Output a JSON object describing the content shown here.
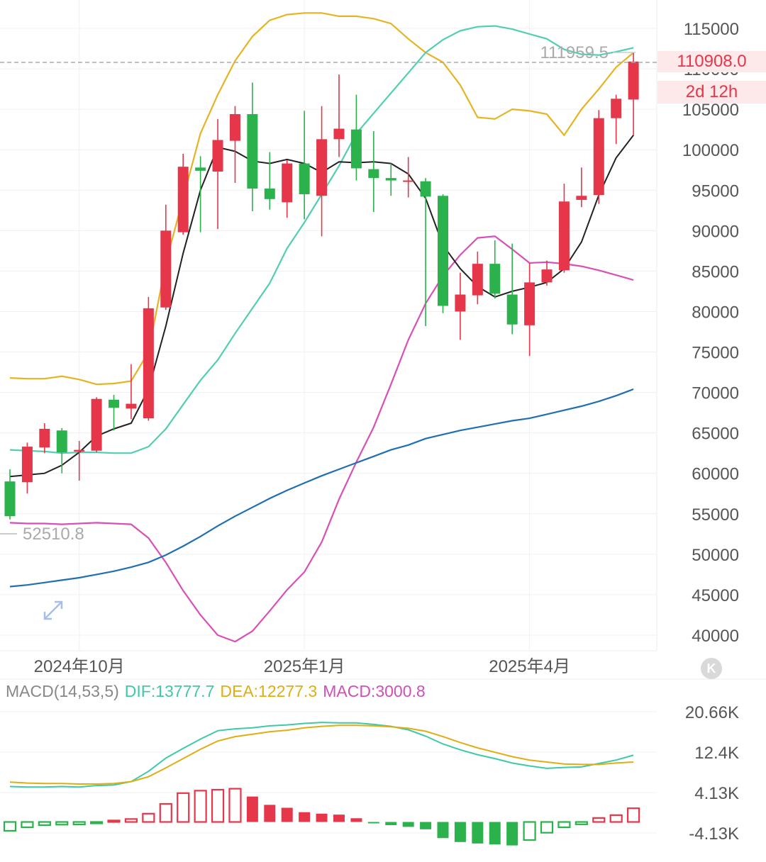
{
  "chart_data": [
    {
      "type": "candlestick",
      "title": "",
      "y_axis_ticks": [
        40000,
        45000,
        50000,
        55000,
        60000,
        65000,
        70000,
        75000,
        80000,
        85000,
        90000,
        95000,
        100000,
        105000,
        110000,
        115000
      ],
      "x_axis_ticks": [
        "2024年10月",
        "2025年1月",
        "2025年4月"
      ],
      "ylim": [
        38000,
        118000
      ],
      "annotations": {
        "high_label": "111959.5",
        "low_label": "52510.8",
        "last_price": "110908.0",
        "countdown": "2d 12h"
      },
      "candles": [
        {
          "o": 59000,
          "c": 54700,
          "h": 60500,
          "l": 54300
        },
        {
          "o": 58900,
          "c": 63300,
          "h": 63800,
          "l": 57500
        },
        {
          "o": 63200,
          "c": 65500,
          "h": 66200,
          "l": 62500
        },
        {
          "o": 65300,
          "c": 62600,
          "h": 65600,
          "l": 60000
        },
        {
          "o": 62700,
          "c": 62900,
          "h": 64000,
          "l": 59100
        },
        {
          "o": 62800,
          "c": 69200,
          "h": 69400,
          "l": 62600
        },
        {
          "o": 69100,
          "c": 68100,
          "h": 69700,
          "l": 65300
        },
        {
          "o": 68000,
          "c": 68600,
          "h": 73500,
          "l": 66700
        },
        {
          "o": 66800,
          "c": 80400,
          "h": 81800,
          "l": 66500
        },
        {
          "o": 80500,
          "c": 90000,
          "h": 93200,
          "l": 80200
        },
        {
          "o": 89800,
          "c": 97900,
          "h": 99500,
          "l": 89500
        },
        {
          "o": 97800,
          "c": 97400,
          "h": 99200,
          "l": 89800
        },
        {
          "o": 97300,
          "c": 101200,
          "h": 103800,
          "l": 90200
        },
        {
          "o": 101100,
          "c": 104400,
          "h": 105400,
          "l": 95900
        },
        {
          "o": 104400,
          "c": 95200,
          "h": 108300,
          "l": 92400
        },
        {
          "o": 95200,
          "c": 93900,
          "h": 99700,
          "l": 92600
        },
        {
          "o": 93500,
          "c": 98300,
          "h": 98700,
          "l": 91600
        },
        {
          "o": 98300,
          "c": 94500,
          "h": 104800,
          "l": 91400
        },
        {
          "o": 94300,
          "c": 101300,
          "h": 105400,
          "l": 89300
        },
        {
          "o": 101300,
          "c": 102600,
          "h": 109300,
          "l": 99100
        },
        {
          "o": 102500,
          "c": 97700,
          "h": 106800,
          "l": 96200
        },
        {
          "o": 97600,
          "c": 96500,
          "h": 102300,
          "l": 92300
        },
        {
          "o": 96500,
          "c": 96200,
          "h": 98300,
          "l": 94300
        },
        {
          "o": 96200,
          "c": 96200,
          "h": 99100,
          "l": 94100
        },
        {
          "o": 96100,
          "c": 94200,
          "h": 96500,
          "l": 78200
        },
        {
          "o": 94300,
          "c": 80700,
          "h": 94500,
          "l": 79800
        },
        {
          "o": 80000,
          "c": 82100,
          "h": 84800,
          "l": 76500
        },
        {
          "o": 82000,
          "c": 85900,
          "h": 87400,
          "l": 80900
        },
        {
          "o": 85900,
          "c": 82200,
          "h": 88800,
          "l": 81600
        },
        {
          "o": 82100,
          "c": 78400,
          "h": 88400,
          "l": 77200
        },
        {
          "o": 78300,
          "c": 83600,
          "h": 86000,
          "l": 74500
        },
        {
          "o": 83600,
          "c": 85200,
          "h": 86300,
          "l": 83200
        },
        {
          "o": 85100,
          "c": 93600,
          "h": 95800,
          "l": 84800
        },
        {
          "o": 93800,
          "c": 94300,
          "h": 97800,
          "l": 92900
        },
        {
          "o": 94400,
          "c": 103900,
          "h": 104900,
          "l": 93300
        },
        {
          "o": 103900,
          "c": 106300,
          "h": 106800,
          "l": 100700
        },
        {
          "o": 106200,
          "c": 110900,
          "h": 112000,
          "l": 101800
        }
      ],
      "series": [
        {
          "color": "#e6b422",
          "values": [
            71800,
            71700,
            71700,
            72000,
            71600,
            71000,
            71100,
            71400,
            75000,
            86000,
            94000,
            102000,
            106800,
            111000,
            114000,
            116000,
            116700,
            116900,
            116900,
            116500,
            116500,
            116200,
            115600,
            113700,
            112000,
            110800,
            108000,
            104000,
            103800,
            105000,
            104800,
            104400,
            101800,
            105000,
            107500,
            110200,
            112000
          ]
        },
        {
          "color": "#4fcfb0",
          "values": [
            62900,
            62800,
            62700,
            62500,
            62600,
            62600,
            62500,
            62500,
            63300,
            65500,
            68500,
            71500,
            74000,
            77300,
            80400,
            83500,
            87800,
            91000,
            94500,
            98000,
            102000,
            104500,
            107000,
            109500,
            112000,
            113600,
            114700,
            115200,
            115300,
            114900,
            114300,
            113700,
            112400,
            111800,
            111700,
            112100,
            112600
          ]
        },
        {
          "color": "#d94fb8",
          "values": [
            53900,
            53800,
            53800,
            53700,
            53800,
            53900,
            53800,
            53700,
            52000,
            49000,
            45500,
            42500,
            40000,
            39200,
            40500,
            43000,
            45600,
            47800,
            51500,
            56800,
            61400,
            65700,
            71000,
            76500,
            81000,
            84400,
            87000,
            89100,
            89300,
            87700,
            86000,
            86100,
            85900,
            85600,
            85100,
            84500,
            83900
          ]
        },
        {
          "color": "#222222",
          "values": [
            59600,
            59800,
            60000,
            61000,
            62600,
            64600,
            65500,
            66200,
            70400,
            78200,
            87200,
            95000,
            100300,
            99800,
            98600,
            98300,
            98800,
            98300,
            97200,
            98500,
            98400,
            98500,
            98300,
            97000,
            94000,
            88200,
            85300,
            83100,
            81800,
            82500,
            83000,
            83600,
            85300,
            88600,
            94400,
            99000,
            101800
          ]
        },
        {
          "color": "#1f6fb2",
          "values": [
            46000,
            46200,
            46500,
            46800,
            47100,
            47500,
            47900,
            48400,
            49000,
            49900,
            51000,
            52200,
            53500,
            54700,
            55800,
            56900,
            57900,
            58800,
            59700,
            60500,
            61300,
            62100,
            62900,
            63500,
            64300,
            64800,
            65300,
            65700,
            66100,
            66500,
            66800,
            67300,
            67800,
            68300,
            68900,
            69600,
            70400
          ]
        }
      ]
    },
    {
      "type": "bar",
      "title": "MACD(14,53,5)",
      "indicators": {
        "dif": "DIF:13777.7",
        "dea": "DEA:12277.3",
        "macd": "MACD:3000.8"
      },
      "y_axis_ticks": [
        "20.66K",
        "12.4K",
        "4.13K",
        "-4.13K"
      ],
      "ylim": [
        -6000,
        24000
      ],
      "histogram": [
        -1800,
        -1100,
        -650,
        -550,
        -520,
        -160,
        300,
        600,
        1700,
        3700,
        5900,
        6400,
        6600,
        6800,
        5200,
        3500,
        2900,
        2000,
        1700,
        1500,
        760,
        -180,
        -650,
        -1000,
        -1500,
        -3300,
        -4100,
        -4400,
        -4600,
        -4800,
        -3700,
        -2200,
        -1100,
        -480,
        820,
        1400,
        2800
      ],
      "dif": [
        7400,
        7300,
        7300,
        7400,
        7300,
        7600,
        7700,
        8400,
        10500,
        13200,
        15200,
        17100,
        18800,
        19200,
        19400,
        19800,
        20000,
        20300,
        20500,
        20400,
        20400,
        20100,
        19700,
        19000,
        17700,
        16100,
        14900,
        13900,
        13100,
        12200,
        11600,
        11100,
        11300,
        11400,
        12100,
        12800,
        13800
      ],
      "dea": [
        8300,
        8100,
        8000,
        8000,
        7900,
        7900,
        8000,
        8400,
        9400,
        11200,
        13100,
        15000,
        16700,
        17600,
        18100,
        18600,
        18900,
        19400,
        19700,
        19900,
        19900,
        19800,
        19600,
        19300,
        18700,
        17600,
        16400,
        15300,
        14400,
        13500,
        12800,
        12400,
        12000,
        11900,
        11900,
        12200,
        12400
      ]
    }
  ]
}
